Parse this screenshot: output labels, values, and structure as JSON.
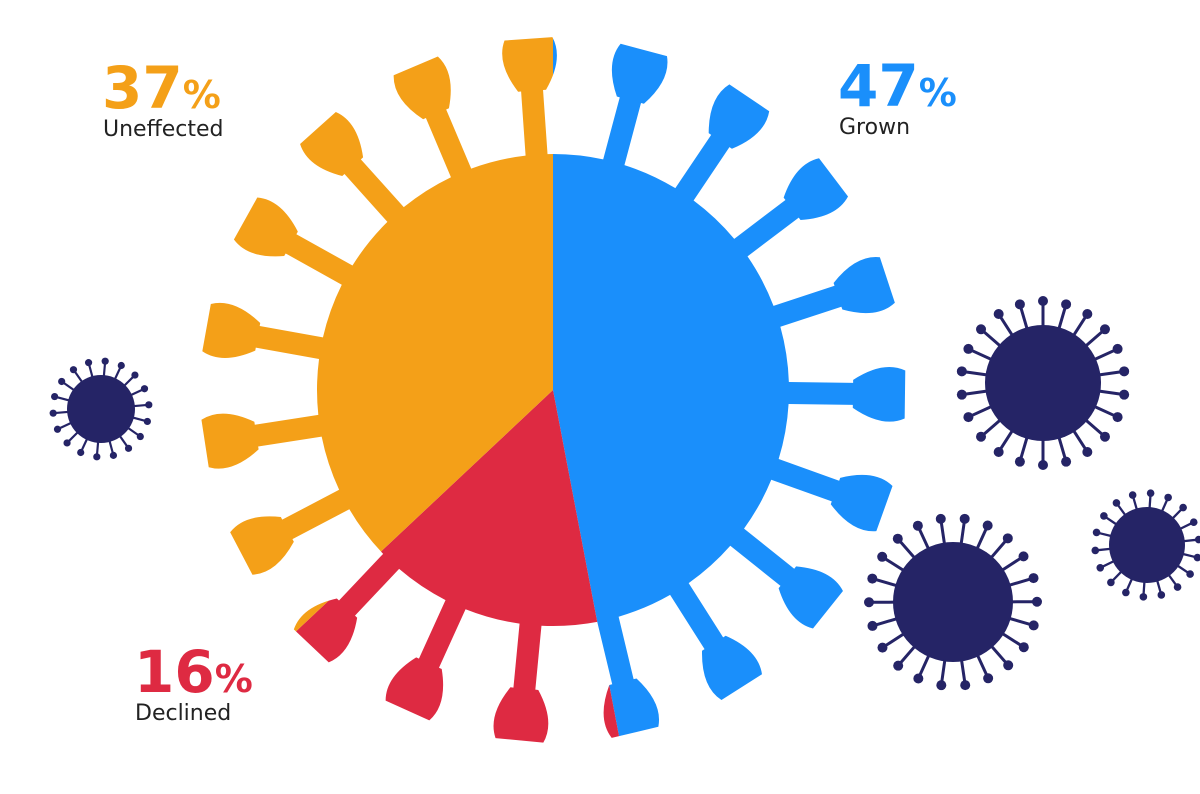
{
  "chart_data": {
    "type": "pie",
    "categories": [
      "Grown",
      "Declined",
      "Uneffected"
    ],
    "values": [
      47,
      16,
      37
    ],
    "value_labels": [
      "47%",
      "16%",
      "37%"
    ],
    "colors": [
      "#1a8ffb",
      "#de2a42",
      "#f4a018"
    ]
  }
}
